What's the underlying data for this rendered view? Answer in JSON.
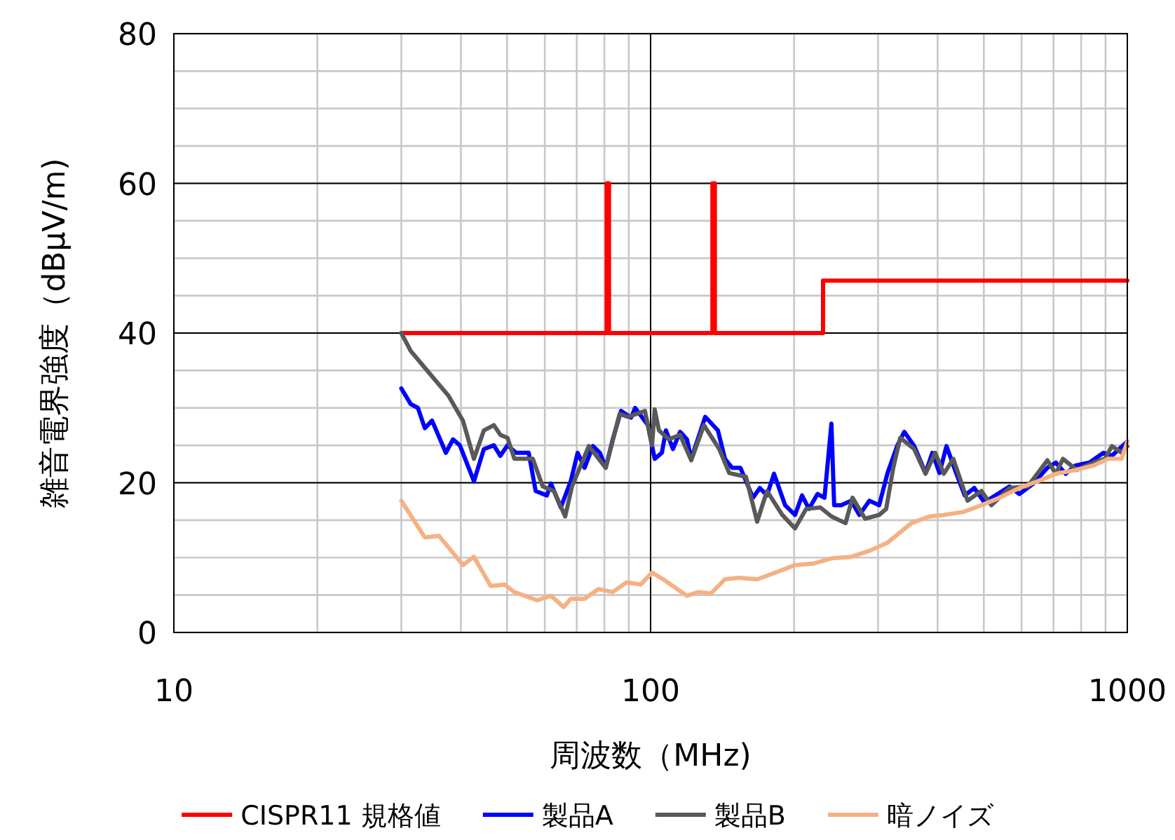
{
  "chart_data": {
    "type": "line",
    "log": "x",
    "xlabel": "周波数（MHz)",
    "ylabel": "雑音電界強度（dBμV/m)",
    "xlim": [
      10,
      1000
    ],
    "xticks": [
      10,
      100,
      1000
    ],
    "ylim": [
      0,
      80
    ],
    "yticks": [
      0,
      20,
      40,
      60,
      80
    ],
    "grid": true,
    "legend": "bottom",
    "marker": "none",
    "line_style": "solid",
    "series": [
      {
        "name": "CISPR11 規格値",
        "color": "#ff0000",
        "x": [
          30,
          80.9,
          80.9,
          81.8,
          81.8,
          134.8,
          134.8,
          136.4,
          136.4,
          230,
          230,
          1000
        ],
        "values": [
          40,
          40,
          60,
          60,
          40,
          40,
          60,
          60,
          40,
          40,
          47,
          47
        ]
      },
      {
        "name": "製品A",
        "color": "#0000ff",
        "x": [
          30,
          31.4,
          32.5,
          33.6,
          34.8,
          37.2,
          38.5,
          39.8,
          42.6,
          44.7,
          46.9,
          48.4,
          50.1,
          52.2,
          55.5,
          57.4,
          60.6,
          61.8,
          64.8,
          68.0,
          70.3,
          72.7,
          75.7,
          78.3,
          80.5,
          83.3,
          86.7,
          91.0,
          92.8,
          98.7,
          102.0,
          105.6,
          107.7,
          111.4,
          115.3,
          119.2,
          121.7,
          130.2,
          138.4,
          143.2,
          148.2,
          154.3,
          164.0,
          169.5,
          175.4,
          181.5,
          191.5,
          200.9,
          207.8,
          214.9,
          223.9,
          231.6,
          239.5,
          242.7,
          251.2,
          263.4,
          274.2,
          287.7,
          301.6,
          314.1,
          329.4,
          340.6,
          357.3,
          377.3,
          389.9,
          403.6,
          417.5,
          437.5,
          456.0,
          477.6,
          501.2,
          529.0,
          566.2,
          593.6,
          635.3,
          679.6,
          707.9,
          742.3,
          778.1,
          832.6,
          891.3,
          928.1,
          1000
        ],
        "values": [
          32.6,
          30.5,
          30,
          27.3,
          28.3,
          24,
          25.8,
          25,
          20.2,
          24.5,
          25,
          23.6,
          25,
          24,
          24,
          18.9,
          18.3,
          19.9,
          16.7,
          20.2,
          24,
          22,
          24.9,
          24,
          22,
          25.8,
          29.6,
          28.7,
          30,
          27.7,
          23.2,
          24,
          27,
          24.5,
          26.8,
          25.8,
          23.2,
          28.8,
          27,
          23.2,
          22,
          22,
          18,
          19.3,
          18.3,
          21.2,
          17,
          15.7,
          18.3,
          16.5,
          18.5,
          18,
          27.9,
          17,
          17,
          17.6,
          15.7,
          17.6,
          17,
          21.3,
          25,
          26.8,
          24.9,
          21.3,
          24,
          21.3,
          24.9,
          21.3,
          18.3,
          19.3,
          17.4,
          18.3,
          19.5,
          18.5,
          19.9,
          22,
          22.7,
          21.2,
          22.3,
          22.7,
          24,
          23.6,
          25.5
        ]
      },
      {
        "name": "製品B",
        "color": "#595959",
        "x": [
          30,
          31.4,
          34.5,
          37.7,
          40.4,
          42.6,
          44.7,
          46.9,
          48.4,
          50.1,
          51.8,
          56.6,
          59.4,
          62.7,
          66.2,
          68.4,
          74.2,
          80.5,
          86.1,
          89.7,
          97.3,
          100.7,
          102.0,
          104.1,
          109.2,
          115.3,
          121.7,
          129.4,
          139.3,
          146.2,
          158.5,
          167.3,
          175.4,
          188.9,
          200.9,
          212.0,
          227.0,
          239.5,
          256.4,
          265.2,
          281.8,
          301.6,
          312.0,
          322.9,
          333.9,
          357.3,
          377.3,
          395.4,
          412.1,
          431.5,
          462.2,
          494.3,
          518.6,
          566.2,
          618.2,
          679.6,
          707.9,
          732.8,
          783.4,
          849.3,
          897.3,
          928.1,
          972.9,
          1000
        ],
        "values": [
          40,
          37.6,
          34.5,
          31.6,
          28.3,
          23.2,
          27,
          27.7,
          26.4,
          26,
          23.2,
          23.2,
          19.5,
          18.9,
          15.5,
          19.5,
          24.9,
          22,
          29.2,
          28.8,
          29.6,
          25,
          29.8,
          27,
          25.8,
          26.4,
          23,
          27.7,
          24.5,
          21.3,
          20.8,
          14.8,
          18.9,
          15.7,
          13.9,
          16.5,
          16.7,
          15.5,
          14.6,
          18,
          15.2,
          15.7,
          16.5,
          22,
          26,
          24.5,
          21.2,
          24,
          21.2,
          23.2,
          17.6,
          18.9,
          17,
          19.3,
          19.5,
          23,
          21.2,
          23.2,
          21.7,
          22.7,
          23.2,
          24.9,
          24,
          24.9
        ]
      },
      {
        "name": "暗ノイズ",
        "color": "#f4b183",
        "x": [
          30,
          33.6,
          36.0,
          40.4,
          42.6,
          46.2,
          49.4,
          51.8,
          57.8,
          61.8,
          65.7,
          68.0,
          72.7,
          77.8,
          83.3,
          89.1,
          95.3,
          100.7,
          106.3,
          119.2,
          125.9,
          133.8,
          143.2,
          153.1,
          167.3,
          182.7,
          200.9,
          219.4,
          239.5,
          263.4,
          287.7,
          314.1,
          352.4,
          384.6,
          412.1,
          452.9,
          494.3,
          539.7,
          593.6,
          648.6,
          707.9,
          778.1,
          849.3,
          909.9,
          972.9,
          1000
        ],
        "values": [
          17.6,
          12.7,
          12.9,
          9,
          10.1,
          6.2,
          6.4,
          5.4,
          4.3,
          4.9,
          3.4,
          4.5,
          4.5,
          5.8,
          5.4,
          6.7,
          6.4,
          8,
          7.1,
          4.9,
          5.4,
          5.2,
          7.1,
          7.3,
          7.1,
          8,
          9,
          9.2,
          9.9,
          10.1,
          10.9,
          12,
          14.6,
          15.5,
          15.7,
          16.1,
          17,
          18,
          19.3,
          20.2,
          21.2,
          21.7,
          22.3,
          23.2,
          23.2,
          25.5
        ]
      }
    ]
  }
}
